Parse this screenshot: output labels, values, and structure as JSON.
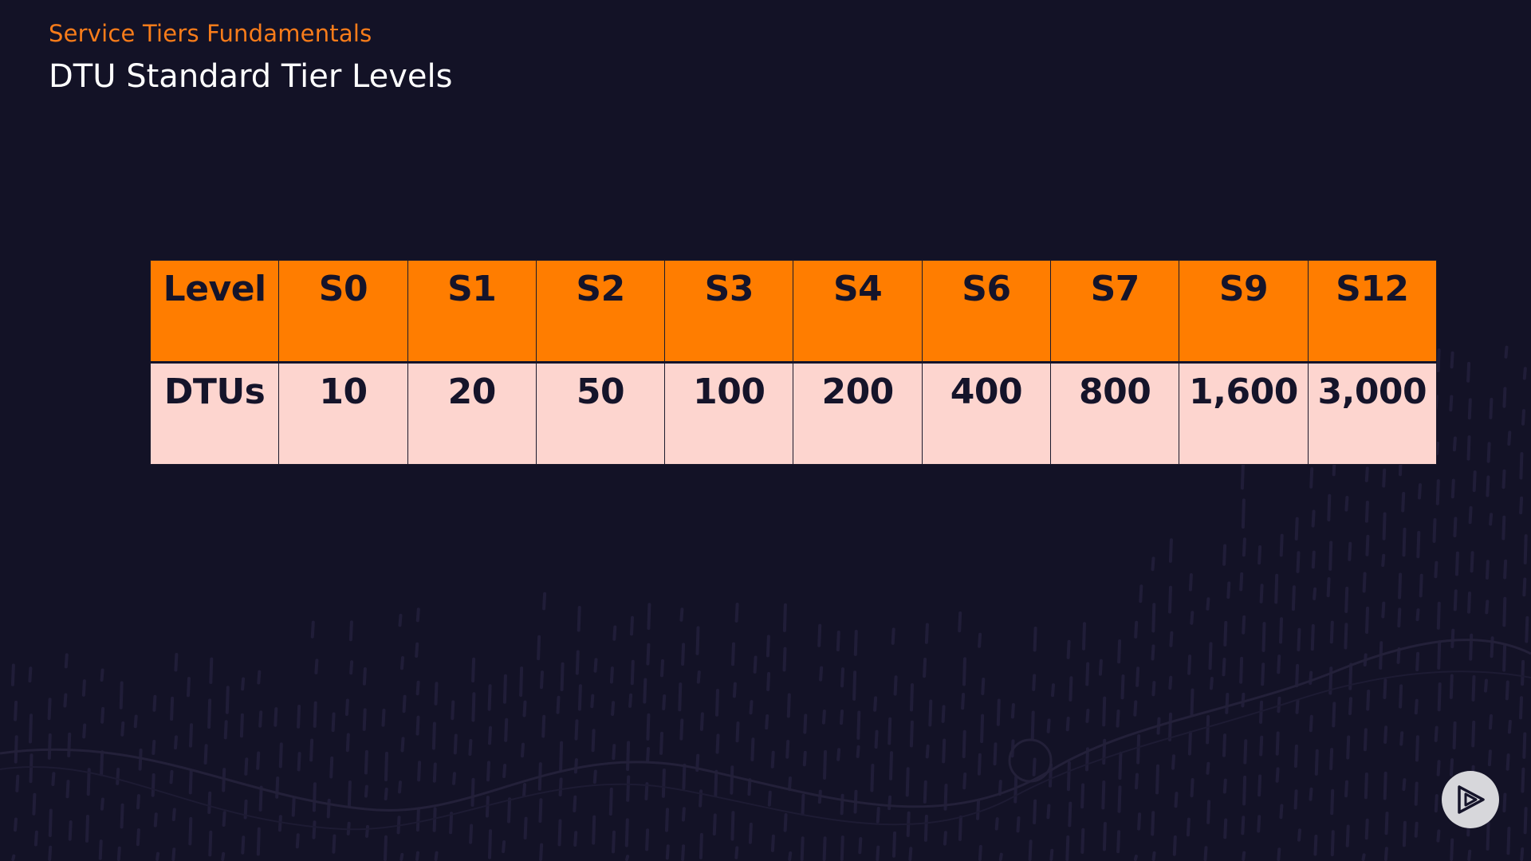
{
  "header": {
    "eyebrow": "Service Tiers Fundamentals",
    "title": "DTU Standard Tier Levels"
  },
  "table": {
    "header_label": "Level",
    "levels": [
      "S0",
      "S1",
      "S2",
      "S3",
      "S4",
      "S6",
      "S7",
      "S9",
      "S12"
    ],
    "row_label": "DTUs",
    "dtus": [
      "10",
      "20",
      "50",
      "100",
      "200",
      "400",
      "800",
      "1,600",
      "3,000"
    ]
  },
  "colors": {
    "background": "#131226",
    "accent": "#f97c1a",
    "header_fill": "#ff7d00",
    "row_fill": "#fdd5cf"
  },
  "icons": {
    "corner_logo": "play-logo-icon",
    "background_pattern": "decorative-wave-pattern"
  }
}
